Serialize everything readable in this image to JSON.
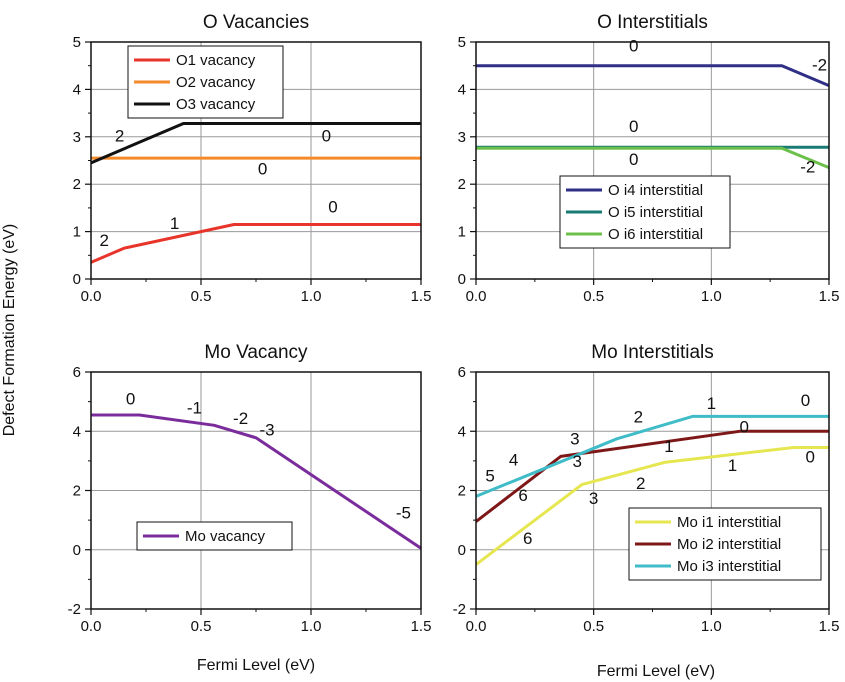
{
  "figure": {
    "ylabel": "Defect Formation Energy (eV)",
    "xlabel": "Fermi Level (eV)"
  },
  "chart_data": [
    {
      "type": "line",
      "title": "O Vacancies",
      "xlim": [
        0,
        1.5
      ],
      "ylim": [
        0,
        5
      ],
      "xticks": [
        "0.0",
        "0.5",
        "1.0",
        "1.5"
      ],
      "yticks": [
        "0",
        "1",
        "2",
        "3",
        "4",
        "5"
      ],
      "grid": true,
      "legend_position": "top-left",
      "series": [
        {
          "name": "O1 vacancy",
          "color": "#e8352b",
          "x": [
            0,
            0.15,
            0.65,
            1.5
          ],
          "y": [
            0.35,
            0.65,
            1.15,
            1.15
          ]
        },
        {
          "name": "O2 vacancy",
          "color": "#f48a2a",
          "x": [
            0,
            1.5
          ],
          "y": [
            2.55,
            2.55
          ]
        },
        {
          "name": "O3 vacancy",
          "color": "#111111",
          "x": [
            0,
            0.42,
            1.5
          ],
          "y": [
            2.45,
            3.28,
            3.28
          ]
        }
      ],
      "annotations": [
        {
          "text": "2",
          "x": 0.06,
          "y": 0.7
        },
        {
          "text": "1",
          "x": 0.38,
          "y": 1.05
        },
        {
          "text": "0",
          "x": 1.1,
          "y": 1.4
        },
        {
          "text": "2",
          "x": 0.13,
          "y": 2.9
        },
        {
          "text": "0",
          "x": 0.78,
          "y": 2.2
        },
        {
          "text": "0",
          "x": 1.07,
          "y": 2.9
        }
      ]
    },
    {
      "type": "line",
      "title": "O Interstitials",
      "xlim": [
        0,
        1.5
      ],
      "ylim": [
        0,
        5
      ],
      "xticks": [
        "0.0",
        "0.5",
        "1.0",
        "1.5"
      ],
      "yticks": [
        "0",
        "1",
        "2",
        "3",
        "4",
        "5"
      ],
      "grid": true,
      "legend_position": "bottom-right",
      "series": [
        {
          "name": "O i4 interstitial",
          "color": "#2e2f85",
          "x": [
            0,
            1.3,
            1.5
          ],
          "y": [
            4.5,
            4.5,
            4.08
          ]
        },
        {
          "name": "O i5 interstitial",
          "color": "#1a7a74",
          "x": [
            0,
            1.5
          ],
          "y": [
            2.78,
            2.78
          ]
        },
        {
          "name": "O i6 interstitial",
          "color": "#6cc04a",
          "x": [
            0,
            1.3,
            1.5
          ],
          "y": [
            2.76,
            2.76,
            2.35
          ]
        }
      ],
      "annotations": [
        {
          "text": "0",
          "x": 0.67,
          "y": 4.8
        },
        {
          "text": "-2",
          "x": 1.46,
          "y": 4.4
        },
        {
          "text": "0",
          "x": 0.67,
          "y": 3.1
        },
        {
          "text": "0",
          "x": 0.67,
          "y": 2.4
        },
        {
          "text": "-2",
          "x": 1.41,
          "y": 2.25
        }
      ]
    },
    {
      "type": "line",
      "title": "Mo Vacancy",
      "xlim": [
        0,
        1.5
      ],
      "ylim": [
        -2,
        6
      ],
      "xticks": [
        "0.0",
        "0.5",
        "1.0",
        "1.5"
      ],
      "yticks": [
        "-2",
        "0",
        "2",
        "4",
        "6"
      ],
      "grid": true,
      "legend_position": "bottom-left",
      "series": [
        {
          "name": "Mo vacancy",
          "color": "#7b2c9c",
          "x": [
            0,
            0.22,
            0.56,
            0.75,
            1.5
          ],
          "y": [
            4.55,
            4.55,
            4.2,
            3.78,
            0.05
          ]
        }
      ],
      "annotations": [
        {
          "text": "0",
          "x": 0.18,
          "y": 4.9
        },
        {
          "text": "-1",
          "x": 0.47,
          "y": 4.6
        },
        {
          "text": "-2",
          "x": 0.68,
          "y": 4.25
        },
        {
          "text": "-3",
          "x": 0.8,
          "y": 3.85
        },
        {
          "text": "-5",
          "x": 1.42,
          "y": 1.05
        }
      ]
    },
    {
      "type": "line",
      "title": "Mo Interstitials",
      "xlim": [
        0,
        1.5
      ],
      "ylim": [
        -2,
        6
      ],
      "xticks": [
        "0.0",
        "0.5",
        "1.0",
        "1.5"
      ],
      "yticks": [
        "-2",
        "0",
        "2",
        "4",
        "6"
      ],
      "grid": true,
      "legend_position": "bottom-right",
      "series": [
        {
          "name": "Mo i1 interstitial",
          "color": "#e6e650",
          "x": [
            0,
            0.45,
            0.8,
            1.35,
            1.5
          ],
          "y": [
            -0.5,
            2.2,
            2.95,
            3.45,
            3.45
          ]
        },
        {
          "name": "Mo i2 interstitial",
          "color": "#7e1818",
          "x": [
            0,
            0.36,
            1.12,
            1.5
          ],
          "y": [
            0.95,
            3.15,
            4.0,
            4.0
          ]
        },
        {
          "name": "Mo i3 interstitial",
          "color": "#3fbcc8",
          "x": [
            0,
            0.6,
            0.92,
            1.5
          ],
          "y": [
            1.8,
            3.75,
            4.5,
            4.5
          ]
        }
      ],
      "annotations": [
        {
          "text": "5",
          "x": 0.06,
          "y": 2.3
        },
        {
          "text": "4",
          "x": 0.16,
          "y": 2.85
        },
        {
          "text": "6",
          "x": 0.2,
          "y": 1.65
        },
        {
          "text": "3",
          "x": 0.42,
          "y": 3.55
        },
        {
          "text": "3",
          "x": 0.43,
          "y": 2.8
        },
        {
          "text": "3",
          "x": 0.5,
          "y": 1.55
        },
        {
          "text": "6",
          "x": 0.22,
          "y": 0.2
        },
        {
          "text": "2",
          "x": 0.69,
          "y": 4.3
        },
        {
          "text": "1",
          "x": 1.0,
          "y": 4.75
        },
        {
          "text": "0",
          "x": 1.4,
          "y": 4.85
        },
        {
          "text": "0",
          "x": 1.14,
          "y": 3.95
        },
        {
          "text": "1",
          "x": 0.82,
          "y": 3.3
        },
        {
          "text": "2",
          "x": 0.7,
          "y": 2.05
        },
        {
          "text": "1",
          "x": 1.09,
          "y": 2.65
        },
        {
          "text": "0",
          "x": 1.42,
          "y": 2.95
        }
      ]
    }
  ]
}
